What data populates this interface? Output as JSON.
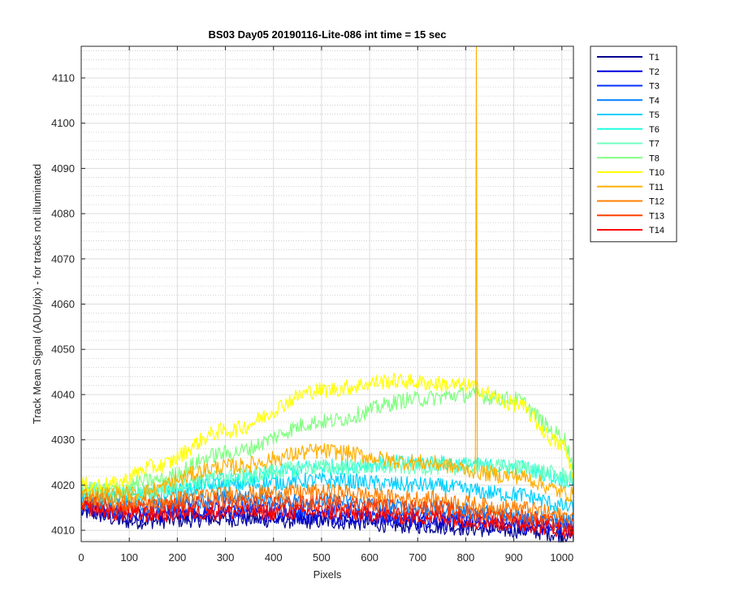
{
  "chart_data": {
    "type": "line",
    "title": "BS03 Day05 20190116-Lite-086 int time = 15 sec",
    "xlabel": "Pixels",
    "ylabel": "Track Mean Signal (ADU/pix) - for tracks not illuminated",
    "xlim": [
      0,
      1024
    ],
    "ylim": [
      4007.5,
      4117
    ],
    "x_ticks": [
      0,
      100,
      200,
      300,
      400,
      500,
      600,
      700,
      800,
      900,
      1000
    ],
    "y_ticks": [
      4010,
      4020,
      4030,
      4040,
      4050,
      4060,
      4070,
      4080,
      4090,
      4100,
      4110
    ],
    "grid": {
      "major": true,
      "minor_y": true
    },
    "legend_position": "outside-top-right",
    "series": [
      {
        "name": "T1",
        "color": "#00008F",
        "profile": {
          "x": [
            0,
            100,
            300,
            500,
            700,
            900,
            1024
          ],
          "y": [
            4014,
            4012,
            4012.5,
            4012,
            4011,
            4010,
            4009
          ]
        }
      },
      {
        "name": "T2",
        "color": "#0000DF",
        "profile": {
          "x": [
            0,
            100,
            300,
            500,
            700,
            900,
            1024
          ],
          "y": [
            4015,
            4013,
            4013.5,
            4013,
            4012,
            4011,
            4010
          ]
        }
      },
      {
        "name": "T3",
        "color": "#0030FF",
        "profile": {
          "x": [
            0,
            100,
            300,
            500,
            700,
            900,
            1024
          ],
          "y": [
            4015,
            4014,
            4015,
            4014.5,
            4013,
            4012,
            4011
          ]
        }
      },
      {
        "name": "T4",
        "color": "#0080FF",
        "profile": {
          "x": [
            0,
            100,
            300,
            500,
            700,
            900,
            1024
          ],
          "y": [
            4016,
            4015,
            4017,
            4016.5,
            4015,
            4013.5,
            4012
          ]
        }
      },
      {
        "name": "T5",
        "color": "#00CFFF",
        "profile": {
          "x": [
            0,
            100,
            300,
            500,
            700,
            900,
            1024
          ],
          "y": [
            4017,
            4017,
            4020,
            4021,
            4020,
            4018,
            4015
          ]
        }
      },
      {
        "name": "T6",
        "color": "#20FFDF",
        "profile": {
          "x": [
            0,
            100,
            300,
            500,
            700,
            900,
            1024
          ],
          "y": [
            4018,
            4018,
            4021,
            4024,
            4025,
            4024,
            4021
          ]
        }
      },
      {
        "name": "T7",
        "color": "#70FFC0",
        "profile": {
          "x": [
            0,
            100,
            300,
            500,
            700,
            900,
            1024
          ],
          "y": [
            4019,
            4018,
            4022,
            4024,
            4024,
            4024,
            4022
          ]
        }
      },
      {
        "name": "T8",
        "color": "#80FF80",
        "profile": {
          "x": [
            0,
            60,
            150,
            300,
            500,
            700,
            800,
            900,
            1000,
            1024
          ],
          "y": [
            4019,
            4019,
            4021,
            4027,
            4034,
            4039,
            4040,
            4039,
            4031,
            4025
          ]
        }
      },
      {
        "name": "T10",
        "color": "#FFFF00",
        "profile": {
          "x": [
            0,
            60,
            150,
            300,
            500,
            650,
            800,
            900,
            1000,
            1024
          ],
          "y": [
            4020,
            4020,
            4024,
            4032,
            4041,
            4043,
            4042,
            4038,
            4029,
            4023
          ]
        }
      },
      {
        "name": "T11",
        "color": "#FFB000",
        "profile": {
          "x": [
            0,
            100,
            300,
            500,
            700,
            900,
            1024
          ],
          "y": [
            4018,
            4018,
            4024,
            4027.5,
            4025,
            4022,
            4018
          ]
        },
        "spike": {
          "x": 822,
          "y": 4117
        }
      },
      {
        "name": "T12",
        "color": "#FF8000",
        "profile": {
          "x": [
            0,
            100,
            300,
            500,
            700,
            900,
            1024
          ],
          "y": [
            4017,
            4016,
            4018,
            4018.5,
            4017,
            4015,
            4013
          ]
        }
      },
      {
        "name": "T13",
        "color": "#FF4000",
        "profile": {
          "x": [
            0,
            100,
            300,
            500,
            700,
            900,
            1024
          ],
          "y": [
            4016,
            4015,
            4016,
            4016,
            4015,
            4013,
            4011
          ]
        }
      },
      {
        "name": "T14",
        "color": "#FF0000",
        "profile": {
          "x": [
            0,
            100,
            300,
            500,
            700,
            900,
            1024
          ],
          "y": [
            4015,
            4013.5,
            4014,
            4014,
            4013,
            4011.5,
            4010
          ]
        }
      }
    ]
  }
}
